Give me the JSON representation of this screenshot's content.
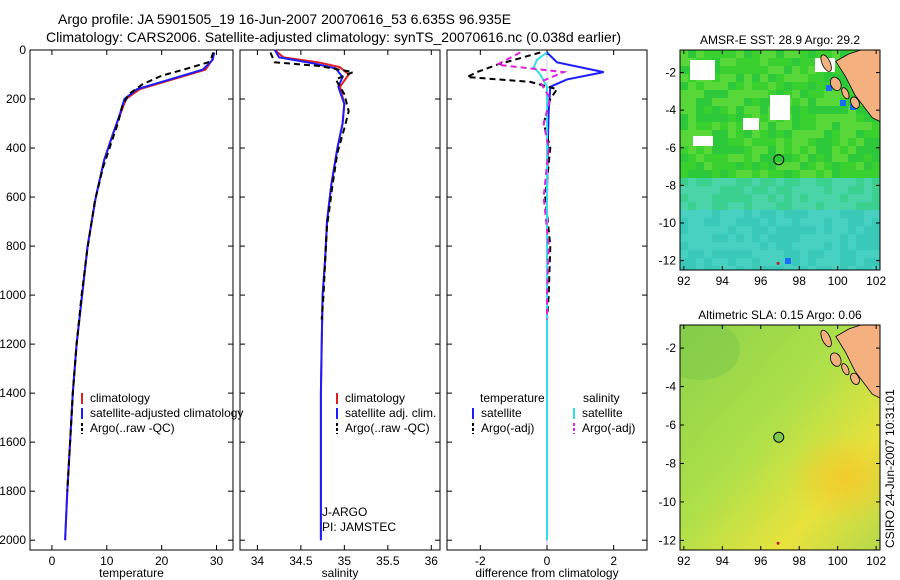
{
  "header": {
    "line1": "Argo profile: JA 5901505_19 16-Jun-2007 20070616_53 6.635S 96.935E",
    "line2": "Climatology: CARS2006. Satellite-adjusted climatology: synTS_20070616.nc (0.038d earlier)"
  },
  "credit": "CSIRO 24-Jun-2007 10:31:01",
  "colors": {
    "climatology": "#e02020",
    "satellite": "#1c1cff",
    "argo": "#000000",
    "sal_satellite": "#30e0e8",
    "sal_argo": "#e020e0",
    "land": "#f5b080"
  },
  "chart_data": [
    {
      "type": "line",
      "id": "temperature",
      "xlabel": "temperature",
      "ylabel": "",
      "xlim": [
        -4,
        33
      ],
      "ylim": [
        2040,
        0
      ],
      "xticks": [
        0,
        10,
        20,
        30
      ],
      "yticks": [
        0,
        200,
        400,
        600,
        800,
        1000,
        1200,
        1400,
        1600,
        1800,
        2000
      ],
      "legend": [
        "climatology",
        "satellite-adjusted climatology",
        "Argo(..raw -QC)"
      ],
      "series": [
        {
          "name": "climatology",
          "color": "#e02020",
          "dash": "",
          "points": [
            [
              29.5,
              10
            ],
            [
              29.2,
              40
            ],
            [
              28,
              80
            ],
            [
              22,
              120
            ],
            [
              16,
              160
            ],
            [
              13.5,
              200
            ],
            [
              12.5,
              260
            ],
            [
              11,
              350
            ],
            [
              9.5,
              450
            ],
            [
              8,
              600
            ],
            [
              6.5,
              800
            ],
            [
              5.5,
              1000
            ],
            [
              4.5,
              1200
            ],
            [
              3.8,
              1400
            ],
            [
              3.3,
              1600
            ],
            [
              2.8,
              1800
            ],
            [
              2.4,
              2000
            ]
          ]
        },
        {
          "name": "satellite-adjusted climatology",
          "color": "#1c1cff",
          "dash": "",
          "points": [
            [
              29.6,
              10
            ],
            [
              29.3,
              40
            ],
            [
              27.5,
              80
            ],
            [
              21.5,
              120
            ],
            [
              15.5,
              160
            ],
            [
              13.2,
              200
            ],
            [
              12.4,
              260
            ],
            [
              11,
              350
            ],
            [
              9.5,
              450
            ],
            [
              8,
              600
            ],
            [
              6.5,
              800
            ],
            [
              5.5,
              1000
            ],
            [
              4.5,
              1200
            ],
            [
              3.8,
              1400
            ],
            [
              3.3,
              1600
            ],
            [
              2.8,
              1800
            ],
            [
              2.4,
              2000
            ]
          ]
        },
        {
          "name": "Argo(..raw -QC)",
          "color": "#000000",
          "dash": "6,4",
          "points": [
            [
              29.4,
              10
            ],
            [
              29.1,
              30
            ],
            [
              28.5,
              50
            ],
            [
              24,
              80
            ],
            [
              20,
              105
            ],
            [
              16.5,
              140
            ],
            [
              14,
              180
            ],
            [
              12.8,
              230
            ],
            [
              12,
              300
            ],
            [
              10.8,
              380
            ],
            [
              9.3,
              480
            ],
            [
              7.8,
              620
            ],
            [
              6.4,
              820
            ],
            [
              5.4,
              1000
            ],
            [
              4.5,
              1200
            ],
            [
              3.8,
              1400
            ],
            [
              3.3,
              1600
            ],
            [
              2.8,
              1800
            ]
          ]
        }
      ]
    },
    {
      "type": "line",
      "id": "salinity",
      "xlabel": "salinity",
      "xlim": [
        33.8,
        36.1
      ],
      "ylim": [
        2040,
        0
      ],
      "xticks": [
        34,
        34.5,
        35,
        35.5,
        36
      ],
      "legend": [
        "climatology",
        "satellite adj. clim.",
        "Argo(..raw -QC)"
      ],
      "annotations": [
        "J-ARGO",
        "PI: JAMSTEC"
      ],
      "series": [
        {
          "name": "climatology",
          "color": "#e02020",
          "dash": "",
          "points": [
            [
              34.2,
              0
            ],
            [
              34.3,
              30
            ],
            [
              34.7,
              50
            ],
            [
              34.95,
              70
            ],
            [
              35.05,
              100
            ],
            [
              34.95,
              150
            ],
            [
              35.0,
              220
            ],
            [
              34.98,
              300
            ],
            [
              34.92,
              400
            ],
            [
              34.85,
              550
            ],
            [
              34.8,
              700
            ],
            [
              34.78,
              850
            ],
            [
              34.75,
              1000
            ],
            [
              34.74,
              1200
            ],
            [
              34.73,
              1400
            ],
            [
              34.73,
              1600
            ],
            [
              34.73,
              1800
            ],
            [
              34.73,
              2000
            ]
          ]
        },
        {
          "name": "satellite adj. clim.",
          "color": "#1c1cff",
          "dash": "",
          "points": [
            [
              34.2,
              0
            ],
            [
              34.25,
              30
            ],
            [
              34.65,
              55
            ],
            [
              34.9,
              75
            ],
            [
              34.98,
              110
            ],
            [
              34.93,
              150
            ],
            [
              35.0,
              220
            ],
            [
              34.98,
              300
            ],
            [
              34.92,
              400
            ],
            [
              34.85,
              550
            ],
            [
              34.8,
              700
            ],
            [
              34.78,
              850
            ],
            [
              34.75,
              1000
            ],
            [
              34.74,
              1200
            ],
            [
              34.73,
              1400
            ],
            [
              34.73,
              1600
            ],
            [
              34.73,
              1800
            ],
            [
              34.73,
              2000
            ]
          ]
        },
        {
          "name": "Argo(..raw -QC)",
          "color": "#000000",
          "dash": "6,4",
          "points": [
            [
              34.15,
              10
            ],
            [
              34.2,
              50
            ],
            [
              34.7,
              65
            ],
            [
              35.1,
              90
            ],
            [
              34.9,
              120
            ],
            [
              35.0,
              180
            ],
            [
              35.05,
              250
            ],
            [
              35.0,
              320
            ],
            [
              34.92,
              420
            ],
            [
              34.86,
              560
            ],
            [
              34.8,
              720
            ],
            [
              34.78,
              860
            ],
            [
              34.76,
              1000
            ],
            [
              34.74,
              1100
            ]
          ]
        }
      ]
    },
    {
      "type": "line",
      "id": "difference",
      "xlabel": "difference from climatology",
      "xlim": [
        -3,
        3
      ],
      "ylim": [
        2040,
        0
      ],
      "xticks": [
        -2,
        0,
        2
      ],
      "legend": {
        "temperature_header": "temperature",
        "salinity_header": "salinity",
        "temperature": [
          "satellite",
          "Argo(-adj)"
        ],
        "salinity": [
          "satellite",
          "Argo(-adj)"
        ]
      },
      "series": [
        {
          "name": "temperature satellite",
          "color": "#1c1cff",
          "dash": "",
          "points": [
            [
              0,
              10
            ],
            [
              0.3,
              50
            ],
            [
              1.7,
              90
            ],
            [
              0.6,
              120
            ],
            [
              0.1,
              150
            ],
            [
              0.05,
              250
            ],
            [
              0.02,
              400
            ],
            [
              0,
              600
            ],
            [
              0,
              800
            ],
            [
              0,
              1000
            ],
            [
              0,
              1200
            ],
            [
              0,
              1400
            ],
            [
              0,
              1600
            ],
            [
              0,
              1800
            ],
            [
              0,
              2000
            ]
          ]
        },
        {
          "name": "temperature Argo(-adj)",
          "color": "#000000",
          "dash": "6,4",
          "points": [
            [
              -0.2,
              10
            ],
            [
              -1.5,
              60
            ],
            [
              -2.1,
              90
            ],
            [
              -2.4,
              110
            ],
            [
              -0.5,
              130
            ],
            [
              0.3,
              160
            ],
            [
              0.1,
              200
            ],
            [
              -0.1,
              300
            ],
            [
              0.1,
              400
            ],
            [
              -0.05,
              600
            ],
            [
              0.1,
              800
            ],
            [
              0.05,
              1000
            ],
            [
              0,
              1100
            ]
          ]
        },
        {
          "name": "salinity satellite",
          "color": "#30e0e8",
          "dash": "",
          "points": [
            [
              0,
              10
            ],
            [
              -0.3,
              40
            ],
            [
              -0.4,
              70
            ],
            [
              -0.2,
              100
            ],
            [
              0,
              150
            ],
            [
              0,
              300
            ],
            [
              0,
              600
            ],
            [
              0,
              900
            ],
            [
              0,
              1200
            ],
            [
              0,
              1500
            ],
            [
              0,
              1800
            ],
            [
              0,
              2000
            ]
          ]
        },
        {
          "name": "salinity Argo(-adj)",
          "color": "#e020e0",
          "dash": "6,4",
          "points": [
            [
              -0.8,
              10
            ],
            [
              -1.5,
              60
            ],
            [
              0.5,
              90
            ],
            [
              -0.2,
              130
            ],
            [
              0.1,
              200
            ],
            [
              -0.1,
              300
            ],
            [
              0.05,
              400
            ],
            [
              -0.1,
              600
            ],
            [
              0.05,
              800
            ],
            [
              0,
              1000
            ],
            [
              0,
              1100
            ]
          ]
        }
      ]
    },
    {
      "type": "heatmap",
      "id": "sst_map",
      "title": "AMSR-E SST: 28.9 Argo: 29.2",
      "xlim": [
        91.8,
        102.2
      ],
      "ylim": [
        -12.5,
        -0.8
      ],
      "xticks": [
        92,
        94,
        96,
        98,
        100,
        102
      ],
      "yticks": [
        -2,
        -4,
        -6,
        -8,
        -10,
        -12
      ],
      "float_position": [
        96.935,
        -6.635
      ]
    },
    {
      "type": "heatmap",
      "id": "sla_map",
      "title": "Altimetric SLA: 0.15 Argo: 0.06",
      "xlim": [
        91.8,
        102.2
      ],
      "ylim": [
        -12.5,
        -0.8
      ],
      "xticks": [
        92,
        94,
        96,
        98,
        100,
        102
      ],
      "yticks": [
        -2,
        -4,
        -6,
        -8,
        -10,
        -12
      ],
      "float_position": [
        96.935,
        -6.635
      ]
    }
  ]
}
